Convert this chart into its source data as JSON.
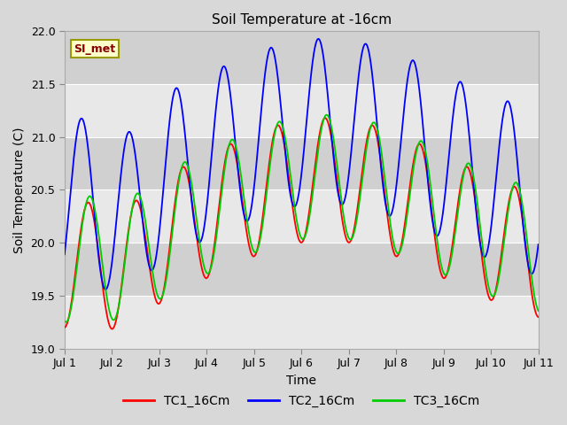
{
  "title": "Soil Temperature at -16cm",
  "xlabel": "Time",
  "ylabel": "Soil Temperature (C)",
  "ylim": [
    19.0,
    22.0
  ],
  "xlim": [
    0,
    10
  ],
  "xtick_positions": [
    0,
    1,
    2,
    3,
    4,
    5,
    6,
    7,
    8,
    9,
    10
  ],
  "xtick_labels": [
    "Jul 1",
    "Jul 2",
    "Jul 3",
    "Jul 4",
    "Jul 5",
    "Jul 6",
    "Jul 7",
    "Jul 8",
    "Jul 9",
    "Jul 10",
    "Jul 11"
  ],
  "ytick_positions": [
    19.0,
    19.5,
    20.0,
    20.5,
    21.0,
    21.5,
    22.0
  ],
  "fig_bg_color": "#d8d8d8",
  "plot_bg_color_light": "#e8e8e8",
  "plot_bg_color_dark": "#d0d0d0",
  "grid_color": "#ffffff",
  "annotation_text": "SI_met",
  "annotation_bg": "#ffffcc",
  "annotation_border": "#999900",
  "annotation_text_color": "#880000",
  "line_colors": {
    "TC1_16Cm": "#ff0000",
    "TC2_16Cm": "#0000ff",
    "TC3_16Cm": "#00cc00"
  },
  "legend_labels": [
    "TC1_16Cm",
    "TC2_16Cm",
    "TC3_16Cm"
  ]
}
